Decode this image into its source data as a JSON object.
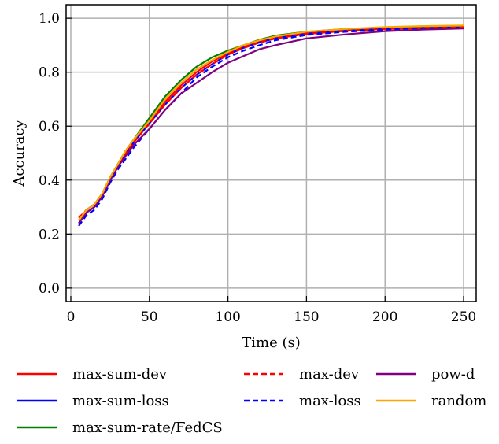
{
  "chart_data": {
    "type": "line",
    "xlabel": "Time (s)",
    "ylabel": "Accuracy",
    "xlim": [
      -3,
      258
    ],
    "ylim": [
      -0.05,
      1.05
    ],
    "xticks": [
      0,
      50,
      100,
      150,
      200,
      250
    ],
    "xtick_labels": [
      "0",
      "50",
      "100",
      "150",
      "200",
      "250"
    ],
    "yticks": [
      0.0,
      0.2,
      0.4,
      0.6,
      0.8,
      1.0
    ],
    "ytick_labels": [
      "0.0",
      "0.2",
      "0.4",
      "0.6",
      "0.8",
      "1.0"
    ],
    "grid": true,
    "legend_position": "below",
    "series": [
      {
        "name": "max-sum-dev",
        "color": "#ff0000",
        "dash": "solid",
        "x": [
          5,
          10,
          15,
          20,
          25,
          30,
          35,
          40,
          50,
          60,
          70,
          80,
          90,
          100,
          110,
          120,
          130,
          150,
          175,
          200,
          225,
          250
        ],
        "y": [
          0.25,
          0.29,
          0.31,
          0.34,
          0.4,
          0.45,
          0.5,
          0.54,
          0.62,
          0.69,
          0.75,
          0.8,
          0.84,
          0.87,
          0.895,
          0.915,
          0.93,
          0.945,
          0.955,
          0.962,
          0.966,
          0.968
        ]
      },
      {
        "name": "max-sum-loss",
        "color": "#0000ff",
        "dash": "solid",
        "x": [
          5,
          10,
          15,
          20,
          25,
          30,
          35,
          40,
          50,
          60,
          70,
          80,
          90,
          100,
          110,
          120,
          130,
          150,
          175,
          200,
          225,
          250
        ],
        "y": [
          0.24,
          0.28,
          0.3,
          0.34,
          0.4,
          0.45,
          0.5,
          0.54,
          0.61,
          0.68,
          0.74,
          0.79,
          0.83,
          0.865,
          0.89,
          0.91,
          0.925,
          0.942,
          0.953,
          0.96,
          0.964,
          0.966
        ]
      },
      {
        "name": "max-sum-rate/FedCS",
        "color": "#008000",
        "dash": "solid",
        "x": [
          5,
          10,
          15,
          20,
          25,
          30,
          35,
          40,
          50,
          60,
          70,
          80,
          90,
          100,
          110,
          120,
          130,
          150,
          175,
          200,
          225,
          250
        ],
        "y": [
          0.25,
          0.29,
          0.31,
          0.35,
          0.41,
          0.46,
          0.51,
          0.55,
          0.63,
          0.71,
          0.77,
          0.82,
          0.855,
          0.88,
          0.9,
          0.92,
          0.935,
          0.95,
          0.96,
          0.966,
          0.97,
          0.972
        ]
      },
      {
        "name": "max-dev",
        "color": "#ff0000",
        "dash": "dashed",
        "x": [
          5,
          10,
          15,
          20,
          25,
          30,
          35,
          40,
          50,
          60,
          70,
          80,
          90,
          100,
          110,
          120,
          130,
          150,
          175,
          200,
          225,
          250
        ],
        "y": [
          0.26,
          0.29,
          0.31,
          0.34,
          0.4,
          0.45,
          0.5,
          0.54,
          0.61,
          0.68,
          0.74,
          0.79,
          0.83,
          0.865,
          0.89,
          0.91,
          0.925,
          0.942,
          0.953,
          0.96,
          0.964,
          0.966
        ]
      },
      {
        "name": "max-loss",
        "color": "#0000ff",
        "dash": "dashed",
        "x": [
          5,
          10,
          15,
          20,
          25,
          30,
          35,
          40,
          50,
          60,
          70,
          80,
          90,
          100,
          110,
          120,
          130,
          150,
          175,
          200,
          225,
          250
        ],
        "y": [
          0.23,
          0.27,
          0.29,
          0.33,
          0.39,
          0.44,
          0.48,
          0.52,
          0.59,
          0.66,
          0.72,
          0.78,
          0.82,
          0.855,
          0.88,
          0.9,
          0.918,
          0.938,
          0.95,
          0.957,
          0.961,
          0.963
        ]
      },
      {
        "name": "pow-d",
        "color": "#800080",
        "dash": "solid",
        "x": [
          5,
          10,
          15,
          20,
          25,
          30,
          35,
          40,
          50,
          60,
          70,
          80,
          90,
          100,
          110,
          120,
          130,
          150,
          175,
          200,
          225,
          250
        ],
        "y": [
          0.24,
          0.28,
          0.3,
          0.34,
          0.4,
          0.45,
          0.49,
          0.53,
          0.59,
          0.66,
          0.72,
          0.76,
          0.8,
          0.835,
          0.86,
          0.885,
          0.9,
          0.925,
          0.94,
          0.952,
          0.958,
          0.962
        ]
      },
      {
        "name": "random",
        "color": "#ffa500",
        "dash": "solid",
        "x": [
          5,
          10,
          15,
          20,
          25,
          30,
          35,
          40,
          50,
          60,
          70,
          80,
          90,
          100,
          110,
          120,
          130,
          150,
          175,
          200,
          225,
          250
        ],
        "y": [
          0.25,
          0.29,
          0.31,
          0.35,
          0.41,
          0.46,
          0.51,
          0.55,
          0.62,
          0.7,
          0.76,
          0.81,
          0.845,
          0.875,
          0.9,
          0.918,
          0.932,
          0.95,
          0.96,
          0.967,
          0.971,
          0.973
        ]
      }
    ],
    "legend_order": [
      0,
      3,
      5,
      1,
      4,
      6,
      2
    ]
  }
}
